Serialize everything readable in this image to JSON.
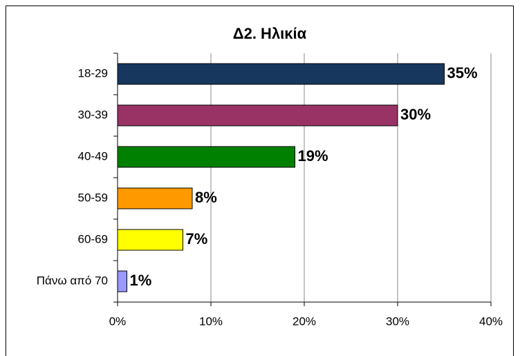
{
  "chart_data": {
    "type": "barh",
    "title": "Δ2. Ηλικία",
    "categories": [
      "18-29",
      "30-39",
      "40-49",
      "50-59",
      "60-69",
      "Πάνω από 70"
    ],
    "values": [
      35,
      30,
      19,
      8,
      7,
      1
    ],
    "value_labels": [
      "35%",
      "30%",
      "19%",
      "8%",
      "7%",
      "1%"
    ],
    "colors": [
      "#17375e",
      "#993366",
      "#008000",
      "#ff9900",
      "#ffff00",
      "#9999ff"
    ],
    "xlim": [
      0,
      40
    ],
    "xticks": [
      {
        "value": 0,
        "label": "0%"
      },
      {
        "value": 10,
        "label": "10%"
      },
      {
        "value": 20,
        "label": "20%"
      },
      {
        "value": 30,
        "label": "30%"
      },
      {
        "value": 40,
        "label": "40%"
      }
    ],
    "grid": true
  }
}
